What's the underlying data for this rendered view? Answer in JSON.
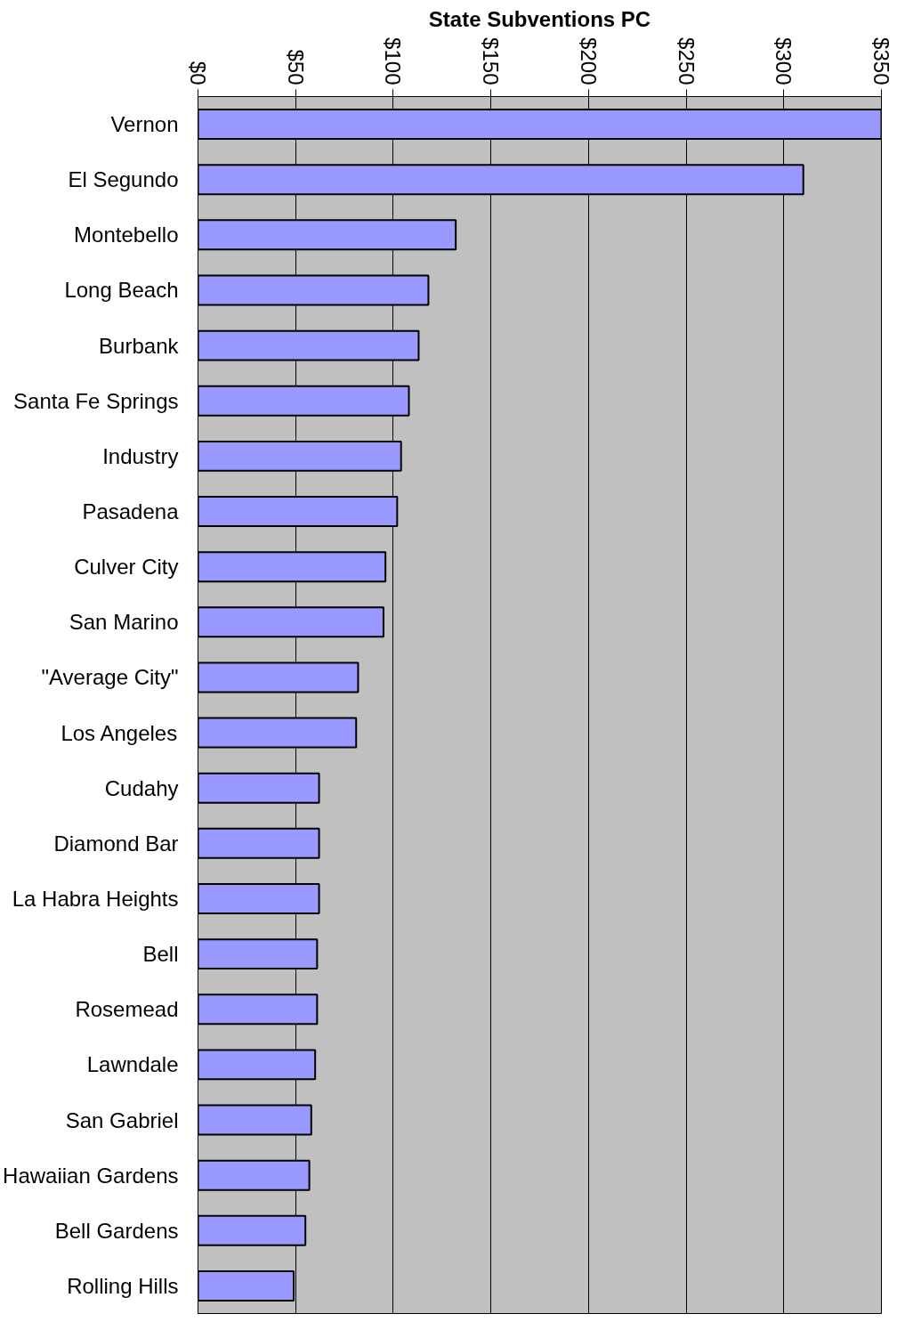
{
  "chart_data": {
    "type": "bar",
    "orientation": "horizontal",
    "title": "State Subventions PC",
    "categories": [
      "Vernon",
      "El Segundo",
      "Montebello",
      "Long Beach",
      "Burbank",
      "Santa Fe Springs",
      "Industry",
      "Pasadena",
      "Culver City",
      "San Marino",
      "\"Average City\"",
      "Los Angeles",
      "Cudahy",
      "Diamond Bar",
      "La Habra Heights",
      "Bell",
      "Rosemead",
      "Lawndale",
      "San Gabriel",
      "Hawaiian Gardens",
      "Bell Gardens",
      "Rolling Hills"
    ],
    "values": [
      350,
      310,
      132,
      118,
      113,
      108,
      104,
      102,
      96,
      95,
      82,
      81,
      62,
      62,
      62,
      61,
      61,
      60,
      58,
      57,
      55,
      49
    ],
    "color": "#9999ff",
    "xlim": [
      0,
      350
    ],
    "xticks": [
      {
        "value": 0,
        "label": "$0"
      },
      {
        "value": 50,
        "label": "$50"
      },
      {
        "value": 100,
        "label": "$100"
      },
      {
        "value": 150,
        "label": "$150"
      },
      {
        "value": 200,
        "label": "$200"
      },
      {
        "value": 250,
        "label": "$250"
      },
      {
        "value": 300,
        "label": "$300"
      },
      {
        "value": 350,
        "label": "$350"
      }
    ],
    "grid": "x"
  }
}
